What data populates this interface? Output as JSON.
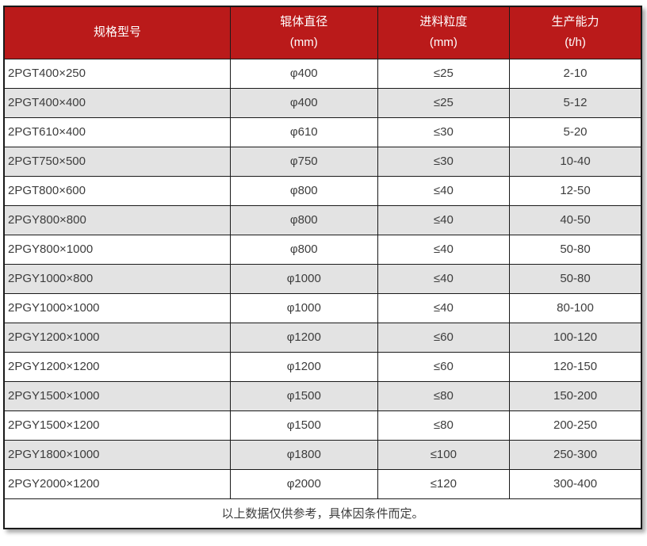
{
  "colors": {
    "header_bg": "#ba1a1a",
    "header_text": "#ffffff",
    "row_alt_bg": "#e3e3e3",
    "row_bg": "#ffffff",
    "border": "#1a1a1a",
    "text": "#3d3d3d"
  },
  "table": {
    "columns": [
      {
        "label": "规格型号",
        "unit": ""
      },
      {
        "label": "辊体直径",
        "unit": "(mm)"
      },
      {
        "label": "进料粒度",
        "unit": "(mm)"
      },
      {
        "label": "生产能力",
        "unit": "(t/h)"
      }
    ],
    "rows": [
      {
        "model": "2PGT400×250",
        "roller_diameter": "φ400",
        "feed_size": "≤25",
        "capacity": "2-10"
      },
      {
        "model": "2PGT400×400",
        "roller_diameter": "φ400",
        "feed_size": "≤25",
        "capacity": "5-12"
      },
      {
        "model": "2PGT610×400",
        "roller_diameter": "φ610",
        "feed_size": "≤30",
        "capacity": "5-20"
      },
      {
        "model": "2PGT750×500",
        "roller_diameter": "φ750",
        "feed_size": "≤30",
        "capacity": "10-40"
      },
      {
        "model": "2PGT800×600",
        "roller_diameter": "φ800",
        "feed_size": "≤40",
        "capacity": "12-50"
      },
      {
        "model": "2PGY800×800",
        "roller_diameter": "φ800",
        "feed_size": "≤40",
        "capacity": "40-50"
      },
      {
        "model": "2PGY800×1000",
        "roller_diameter": "φ800",
        "feed_size": "≤40",
        "capacity": "50-80"
      },
      {
        "model": "2PGY1000×800",
        "roller_diameter": "φ1000",
        "feed_size": "≤40",
        "capacity": "50-80"
      },
      {
        "model": "2PGY1000×1000",
        "roller_diameter": "φ1000",
        "feed_size": "≤40",
        "capacity": "80-100"
      },
      {
        "model": "2PGY1200×1000",
        "roller_diameter": "φ1200",
        "feed_size": "≤60",
        "capacity": "100-120"
      },
      {
        "model": "2PGY1200×1200",
        "roller_diameter": "φ1200",
        "feed_size": "≤60",
        "capacity": "120-150"
      },
      {
        "model": "2PGY1500×1000",
        "roller_diameter": "φ1500",
        "feed_size": "≤80",
        "capacity": "150-200"
      },
      {
        "model": "2PGY1500×1200",
        "roller_diameter": "φ1500",
        "feed_size": "≤80",
        "capacity": "200-250"
      },
      {
        "model": "2PGY1800×1000",
        "roller_diameter": "φ1800",
        "feed_size": "≤100",
        "capacity": "250-300"
      },
      {
        "model": "2PGY2000×1200",
        "roller_diameter": "φ2000",
        "feed_size": "≤120",
        "capacity": "300-400"
      }
    ],
    "footnote": "以上数据仅供参考，具体因条件而定。"
  }
}
